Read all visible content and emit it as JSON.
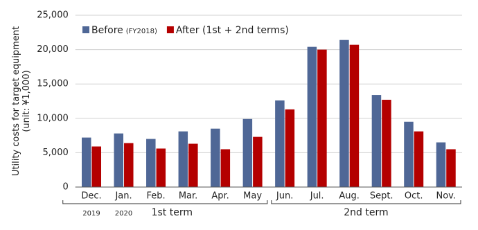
{
  "chart_data": {
    "type": "bar",
    "y_label_lines": [
      "Utility costs for target equipment",
      "(unit: ¥1,000)"
    ],
    "categories": [
      "Dec.",
      "Jan.",
      "Feb.",
      "Mar.",
      "Apr.",
      "May",
      "Jun.",
      "Jul.",
      "Aug.",
      "Sept.",
      "Oct.",
      "Nov."
    ],
    "sub_categories": [
      "2019",
      "2020",
      null,
      null,
      null,
      null,
      null,
      null,
      null,
      null,
      null,
      null
    ],
    "term_labels": [
      "1st term",
      "2nd term"
    ],
    "series": [
      {
        "name": "Before",
        "name_note": "(FY2018)",
        "color": "#4f6796",
        "values": [
          7200,
          7800,
          7000,
          8100,
          8500,
          9900,
          12600,
          20400,
          21400,
          13400,
          9500,
          6500
        ]
      },
      {
        "name": "After (1st + 2nd terms)",
        "color": "#b40000",
        "values": [
          5900,
          6400,
          5600,
          6300,
          5500,
          7300,
          11300,
          20000,
          20700,
          12700,
          8100,
          5500
        ]
      }
    ],
    "ylim": [
      0,
      25000
    ],
    "yticks": [
      0,
      {
        "value": 5000,
        "label": "5,000"
      },
      {
        "value": 10000,
        "label": "10,000"
      },
      {
        "value": 15000,
        "label": "15,000"
      },
      {
        "value": 20000,
        "label": "20,000"
      },
      {
        "value": 25000,
        "label": "25,000"
      }
    ],
    "grid": true
  }
}
